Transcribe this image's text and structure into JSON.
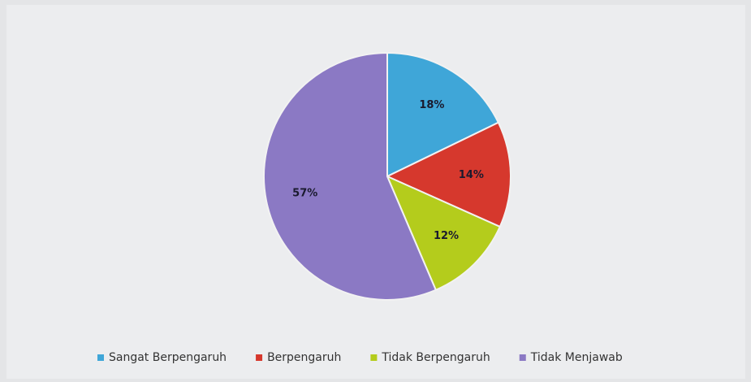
{
  "chart_data": {
    "type": "pie",
    "categories": [
      "Sangat Berpengaruh",
      "Berpengaruh",
      "Tidak Berpengaruh",
      "Tidak Menjawab"
    ],
    "values": [
      18,
      14,
      12,
      57
    ],
    "value_labels": [
      "18%",
      "14%",
      "12%",
      "57%"
    ],
    "colors": [
      "#3fa6d8",
      "#d6382d",
      "#b4cc1c",
      "#8b79c4"
    ],
    "legend": "bottom"
  }
}
